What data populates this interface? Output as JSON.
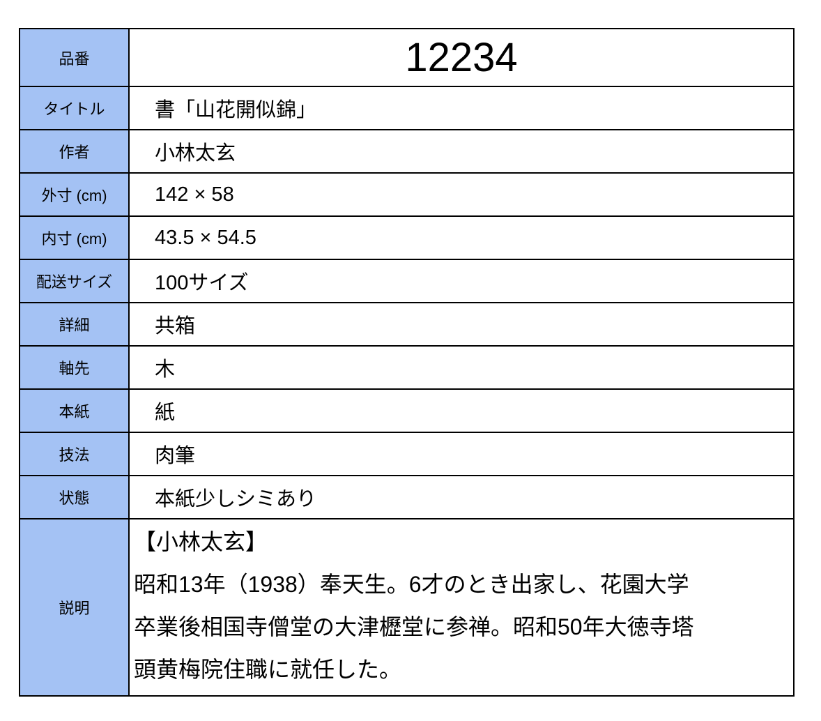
{
  "label_color": "#a4c2f4",
  "item_number": {
    "label": "品番",
    "value": "12234"
  },
  "rows": [
    {
      "label": "タイトル",
      "value": "書「山花開似錦」"
    },
    {
      "label": "作者",
      "value": "小林太玄"
    },
    {
      "label": "外寸 (cm)",
      "value": "142 × 58"
    },
    {
      "label": "内寸 (cm)",
      "value": "43.5 × 54.5"
    },
    {
      "label": "配送サイズ",
      "value": "100サイズ"
    },
    {
      "label": "詳細",
      "value": "共箱"
    },
    {
      "label": "軸先",
      "value": "木"
    },
    {
      "label": "本紙",
      "value": "紙"
    },
    {
      "label": "技法",
      "value": "肉筆"
    },
    {
      "label": "状態",
      "value": "本紙少しシミあり"
    }
  ],
  "description": {
    "label": "説明",
    "lines": [
      "【小林太玄】",
      "昭和13年（1938）奉天生。6才のとき出家し、花園大学",
      "卒業後相国寺僧堂の大津櫪堂に参禅。昭和50年大徳寺塔",
      "頭黄梅院住職に就任した。"
    ]
  }
}
